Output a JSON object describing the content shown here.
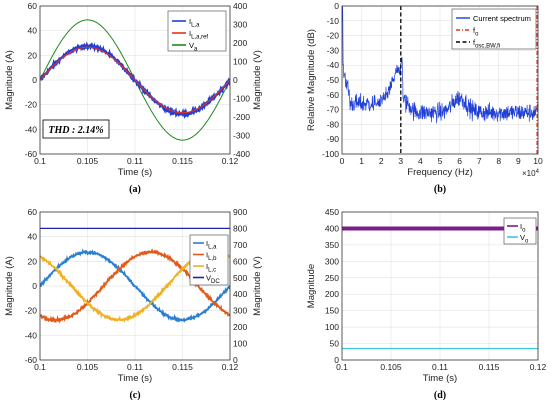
{
  "chart_data": [
    {
      "id": "a",
      "type": "line",
      "panel_label": "(a)",
      "xlabel": "Time (s)",
      "ylabel": "Magnitude (A)",
      "ylabel_right": "Magnitude (V)",
      "xlim": [
        0.1,
        0.12
      ],
      "ylim": [
        -70,
        70
      ],
      "ylim_right": [
        -400,
        400
      ],
      "x_ticks": [
        "0.1",
        "0.105",
        "0.11",
        "0.115",
        "0.12"
      ],
      "y_ticks": [
        "-60",
        "-40",
        "-20",
        "0",
        "20",
        "40",
        "60"
      ],
      "y_ticks_right": [
        "-400",
        "-300",
        "-200",
        "-100",
        "0",
        "100",
        "200",
        "300",
        "400"
      ],
      "legend_position": "top-right",
      "annotation": "THD : 2.14%",
      "frequency_hz": 50,
      "series": [
        {
          "name": "I",
          "name_sub": "L,a",
          "axis": "left",
          "amplitude": 32,
          "color": "#1f3fd6",
          "noise": 1.2
        },
        {
          "name": "I",
          "name_sub": "L,a,ref",
          "axis": "left",
          "amplitude": 31,
          "color": "#e8301c",
          "noise": 0
        },
        {
          "name": "V",
          "name_sub": "a",
          "axis": "right",
          "amplitude": 325,
          "color": "#1f8a1f",
          "noise": 0
        }
      ]
    },
    {
      "id": "b",
      "type": "line",
      "panel_label": "(b)",
      "xlabel": "Frequency (Hz)",
      "ylabel": "Relative Magnitude (dB)",
      "xlim": [
        0,
        10
      ],
      "ylim": [
        -100,
        0
      ],
      "x_ticks": [
        "0",
        "1",
        "2",
        "3",
        "4",
        "5",
        "6",
        "7",
        "8",
        "9",
        "10"
      ],
      "y_ticks": [
        "-100",
        "-90",
        "-80",
        "-70",
        "-60",
        "-50",
        "-40",
        "-30",
        "-20",
        "-10",
        "0"
      ],
      "x_multiplier": "×10",
      "x_multiplier_exp": "4",
      "legend_position": "top-right",
      "series": [
        {
          "name": "Current spectrum",
          "color": "#1f3fd6"
        },
        {
          "name": "f",
          "name_sub": "o",
          "color": "#e8301c",
          "style": "dash-dot",
          "x": 10
        },
        {
          "name": "f",
          "name_sub": "osc,BW,fi",
          "color": "#000000",
          "style": "dashed",
          "x": 3.0
        }
      ]
    },
    {
      "id": "c",
      "type": "line",
      "panel_label": "(c)",
      "xlabel": "Time (s)",
      "ylabel": "Magnitude (A)",
      "ylabel_right": "Magnitude (V)",
      "xlim": [
        0.1,
        0.12
      ],
      "ylim": [
        -70,
        70
      ],
      "ylim_right": [
        0,
        900
      ],
      "x_ticks": [
        "0.1",
        "0.105",
        "0.11",
        "0.115",
        "0.12"
      ],
      "y_ticks": [
        "-60",
        "-40",
        "-20",
        "0",
        "20",
        "40",
        "60"
      ],
      "y_ticks_right": [
        "0",
        "100",
        "200",
        "300",
        "400",
        "500",
        "600",
        "700",
        "800",
        "900"
      ],
      "legend_position": "right",
      "frequency_hz": 50,
      "series": [
        {
          "name": "I",
          "name_sub": "L,a",
          "axis": "left",
          "amplitude": 32,
          "phase_deg": 0,
          "color": "#2a7fd0"
        },
        {
          "name": "I",
          "name_sub": "L,b",
          "axis": "left",
          "amplitude": 32,
          "phase_deg": -120,
          "color": "#e05a1a"
        },
        {
          "name": "I",
          "name_sub": "L,c",
          "axis": "left",
          "amplitude": 32,
          "phase_deg": 120,
          "color": "#f0b020"
        },
        {
          "name": "V",
          "name_sub": "DC",
          "axis": "right",
          "constant": 800,
          "color": "#2020b0"
        }
      ]
    },
    {
      "id": "d",
      "type": "line",
      "panel_label": "(d)",
      "xlabel": "Time (s)",
      "ylabel": "Magnitude",
      "xlim": [
        0.1,
        0.12
      ],
      "ylim": [
        0,
        450
      ],
      "x_ticks": [
        "0.1",
        "0.105",
        "0.11",
        "0.115",
        "0.12"
      ],
      "y_ticks": [
        "0",
        "50",
        "100",
        "150",
        "200",
        "250",
        "300",
        "350",
        "400",
        "450"
      ],
      "legend_position": "top-right",
      "series": [
        {
          "name": "I",
          "name_sub": "o",
          "constant": 400,
          "color": "#7a1f8a"
        },
        {
          "name": "V",
          "name_sub": "o",
          "constant": 35,
          "color": "#3cc8e0"
        }
      ]
    }
  ]
}
